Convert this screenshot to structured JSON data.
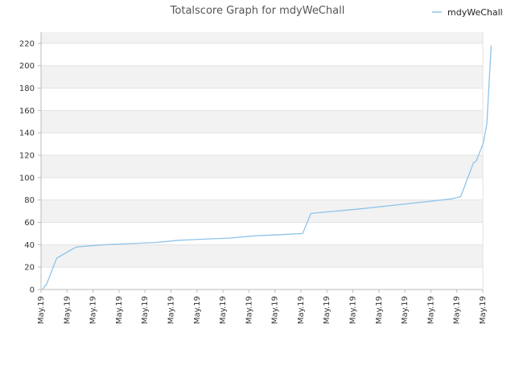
{
  "colors": {
    "line": "#8ec4ea",
    "band": "#f2f2f2",
    "grid": "#e2e2e2",
    "axis": "#bbbbbb",
    "background": "#ffffff"
  },
  "chart_data": {
    "type": "line",
    "title": "Totalscore Graph for mdyWeChall",
    "xlabel": "",
    "ylabel": "",
    "ylim": [
      0,
      230
    ],
    "yticks": [
      0,
      20,
      40,
      60,
      80,
      100,
      120,
      140,
      160,
      180,
      200,
      220
    ],
    "grid": true,
    "alternating_bands": true,
    "legend": {
      "position": "top-right",
      "entries": [
        "mdyWeChall"
      ]
    },
    "xlim": [
      0,
      100
    ],
    "xtick_labels": [
      "May.19",
      "May.19",
      "May.19",
      "May.19",
      "May.19",
      "May.19",
      "May.19",
      "May.19",
      "May.19",
      "May.19",
      "May.19",
      "May.19",
      "May.19",
      "May.19",
      "May.19",
      "May.19",
      "May.19",
      "May.19"
    ],
    "series": [
      {
        "name": "mdyWeChall",
        "x": [
          0.4,
          0.8,
          1.2,
          3.6,
          8.1,
          14.5,
          19.9,
          26.1,
          31.6,
          37.5,
          43.4,
          49.2,
          55.0,
          60.1,
          62.0,
          73.2,
          85.0,
          94.3,
          96.4,
          99.3,
          100.0,
          101.6,
          102.4,
          103.4
        ],
        "y": [
          0,
          3,
          4,
          28,
          38,
          40,
          41,
          42,
          44,
          45,
          46,
          48,
          49,
          50,
          68,
          72,
          77,
          81,
          83,
          113,
          115,
          131,
          148,
          218
        ]
      }
    ]
  }
}
